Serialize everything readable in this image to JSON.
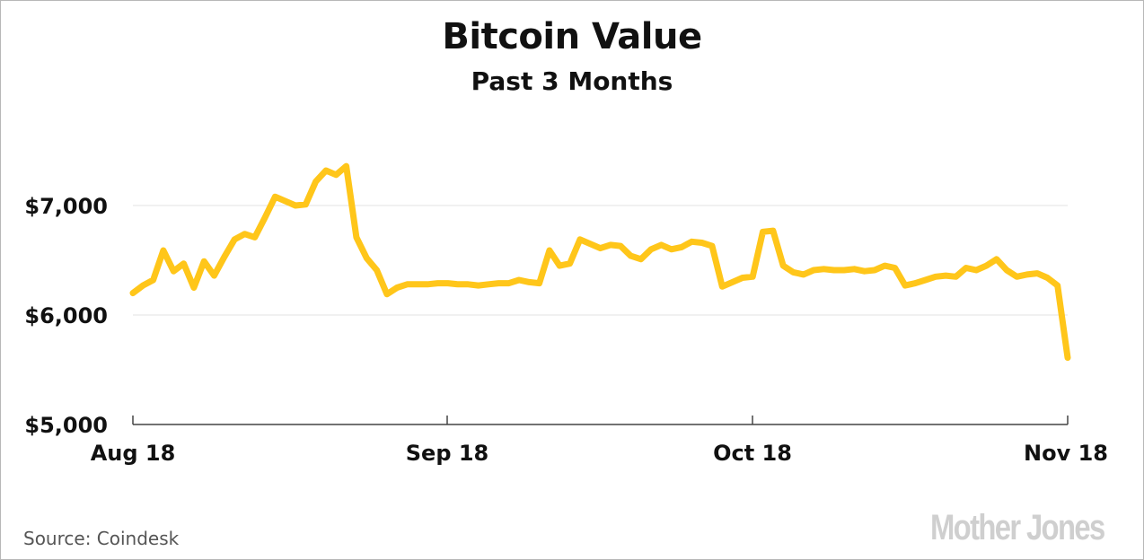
{
  "chart_data": {
    "type": "line",
    "title": "Bitcoin Value",
    "subtitle": "Past 3 Months",
    "xlabel": "",
    "ylabel": "",
    "x_tick_labels": [
      "Aug 18",
      "Sep 18",
      "Oct 18",
      "Nov 18"
    ],
    "y_tick_values": [
      5000,
      6000,
      7000
    ],
    "y_tick_labels": [
      "$5,000",
      "$6,000",
      "$7,000"
    ],
    "ylim": [
      5000,
      7500
    ],
    "grid": true,
    "legend": "none",
    "line_color": "#FFC61A",
    "series": [
      {
        "values": [
          6200,
          6270,
          6320,
          6590,
          6400,
          6470,
          6250,
          6490,
          6360,
          6530,
          6690,
          6740,
          6710,
          6890,
          7080,
          7040,
          7000,
          7010,
          7220,
          7320,
          7280,
          7360,
          6710,
          6520,
          6410,
          6190,
          6250,
          6280,
          6280,
          6280,
          6290,
          6290,
          6280,
          6280,
          6270,
          6280,
          6290,
          6290,
          6320,
          6300,
          6290,
          6590,
          6450,
          6470,
          6690,
          6650,
          6610,
          6640,
          6630,
          6540,
          6510,
          6600,
          6640,
          6600,
          6620,
          6670,
          6660,
          6630,
          6260,
          6300,
          6340,
          6350,
          6760,
          6770,
          6450,
          6390,
          6370,
          6410,
          6420,
          6410,
          6410,
          6420,
          6400,
          6410,
          6450,
          6430,
          6270,
          6290,
          6320,
          6350,
          6360,
          6350,
          6430,
          6410,
          6450,
          6510,
          6410,
          6350,
          6370,
          6380,
          6340,
          6270,
          5610
        ]
      }
    ]
  },
  "source": "Source:  Coindesk",
  "logo": "Mother Jones"
}
